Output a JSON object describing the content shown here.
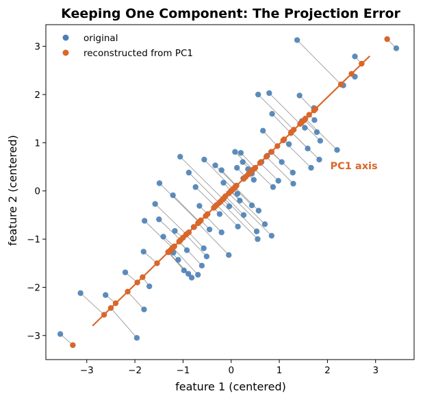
{
  "chart_data": {
    "type": "scatter",
    "title": "Keeping One Component: The Projection Error",
    "xlabel": "feature 1 (centered)",
    "ylabel": "feature 2 (centered)",
    "xlim": [
      -3.85,
      3.8
    ],
    "ylim": [
      -3.5,
      3.45
    ],
    "xticks": [
      -3,
      -2,
      -1,
      0,
      1,
      2,
      3
    ],
    "yticks": [
      -3,
      -2,
      -1,
      0,
      1,
      2,
      3
    ],
    "tick_labels": {
      "x": [
        "−3",
        "−2",
        "−1",
        "0",
        "1",
        "2",
        "3"
      ],
      "y": [
        "−3",
        "−2",
        "−1",
        "0",
        "1",
        "2",
        "3"
      ]
    },
    "grid": false,
    "legend": {
      "position": "top-left",
      "entries": [
        "original",
        "reconstructed from PC1"
      ]
    },
    "colors": {
      "original": "#4a7fb5",
      "reconstructed": "#d9662a",
      "error_line": "#9a9a9a",
      "axis_line": "#d9662a"
    },
    "pc1_axis": {
      "label": "PC1 axis",
      "from": [
        -2.88,
        -2.8
      ],
      "to": [
        2.88,
        2.8
      ],
      "label_at": [
        2.55,
        0.45
      ]
    },
    "series": [
      {
        "name": "original",
        "points": [
          [
            3.43,
            2.96
          ],
          [
            1.37,
            3.13
          ],
          [
            2.57,
            2.79
          ],
          [
            2.57,
            2.37
          ],
          [
            2.33,
            2.19
          ],
          [
            0.56,
            2.0
          ],
          [
            0.79,
            2.03
          ],
          [
            1.42,
            1.98
          ],
          [
            1.72,
            1.72
          ],
          [
            0.85,
            1.6
          ],
          [
            1.47,
            1.45
          ],
          [
            1.73,
            1.47
          ],
          [
            1.53,
            1.31
          ],
          [
            0.66,
            1.25
          ],
          [
            1.78,
            1.22
          ],
          [
            1.85,
            1.04
          ],
          [
            1.2,
            0.97
          ],
          [
            1.59,
            0.88
          ],
          [
            2.2,
            0.85
          ],
          [
            1.83,
            0.65
          ],
          [
            1.66,
            0.48
          ],
          [
            0.08,
            0.81
          ],
          [
            0.2,
            0.79
          ],
          [
            0.75,
            0.73
          ],
          [
            0.63,
            0.6
          ],
          [
            1.05,
            0.6
          ],
          [
            1.28,
            0.38
          ],
          [
            1.29,
            0.15
          ],
          [
            0.98,
            0.21
          ],
          [
            0.87,
            0.08
          ],
          [
            0.24,
            0.6
          ],
          [
            0.12,
            0.48
          ],
          [
            0.35,
            0.45
          ],
          [
            0.43,
            0.36
          ],
          [
            -0.2,
            0.43
          ],
          [
            -1.06,
            0.71
          ],
          [
            -0.56,
            0.65
          ],
          [
            -0.33,
            0.53
          ],
          [
            0.25,
            0.26
          ],
          [
            0.47,
            0.23
          ],
          [
            -0.88,
            0.38
          ],
          [
            -1.49,
            0.16
          ],
          [
            -0.16,
            0.17
          ],
          [
            0.13,
            -0.06
          ],
          [
            -0.74,
            0.08
          ],
          [
            0.18,
            -0.2
          ],
          [
            -0.04,
            -0.32
          ],
          [
            0.43,
            -0.3
          ],
          [
            0.57,
            -0.41
          ],
          [
            -1.21,
            -0.09
          ],
          [
            0.26,
            -0.5
          ],
          [
            -1.58,
            -0.27
          ],
          [
            -0.66,
            -0.31
          ],
          [
            -0.24,
            -0.48
          ],
          [
            -1.5,
            -0.59
          ],
          [
            0.14,
            -0.74
          ],
          [
            0.7,
            -0.69
          ],
          [
            0.84,
            -0.93
          ],
          [
            0.53,
            -0.84
          ],
          [
            -0.2,
            -0.86
          ],
          [
            -0.45,
            -0.8
          ],
          [
            -1.8,
            -0.62
          ],
          [
            -0.78,
            -0.75
          ],
          [
            -1.17,
            -0.83
          ],
          [
            0.55,
            -1.0
          ],
          [
            -1.41,
            -0.95
          ],
          [
            -0.57,
            -1.19
          ],
          [
            -1.82,
            -1.26
          ],
          [
            -1.2,
            -1.28
          ],
          [
            -0.92,
            -1.23
          ],
          [
            -0.51,
            -1.36
          ],
          [
            -0.05,
            -1.33
          ],
          [
            -1.1,
            -1.43
          ],
          [
            -0.61,
            -1.55
          ],
          [
            -0.98,
            -1.65
          ],
          [
            -0.82,
            -1.8
          ],
          [
            -1.7,
            -1.98
          ],
          [
            -0.69,
            -1.74
          ],
          [
            -0.89,
            -1.72
          ],
          [
            -2.2,
            -1.69
          ],
          [
            -2.61,
            -2.16
          ],
          [
            -3.13,
            -2.12
          ],
          [
            -1.81,
            -2.46
          ],
          [
            -1.96,
            -3.05
          ],
          [
            -3.55,
            -2.97
          ]
        ]
      },
      {
        "name": "reconstructed from PC1",
        "points": [
          [
            3.24,
            3.15
          ],
          [
            2.28,
            2.21
          ],
          [
            2.71,
            2.64
          ],
          [
            2.5,
            2.43
          ],
          [
            2.28,
            2.21
          ],
          [
            1.3,
            1.27
          ],
          [
            1.43,
            1.39
          ],
          [
            1.72,
            1.67
          ],
          [
            1.75,
            1.7
          ],
          [
            1.24,
            1.2
          ],
          [
            1.48,
            1.44
          ],
          [
            1.62,
            1.58
          ],
          [
            1.44,
            1.4
          ],
          [
            0.96,
            0.93
          ],
          [
            1.52,
            1.47
          ],
          [
            1.46,
            1.42
          ],
          [
            1.1,
            1.07
          ],
          [
            1.25,
            1.22
          ],
          [
            1.54,
            1.5
          ],
          [
            1.25,
            1.22
          ],
          [
            1.08,
            1.05
          ],
          [
            0.45,
            0.44
          ],
          [
            0.5,
            0.48
          ],
          [
            0.74,
            0.72
          ],
          [
            0.62,
            0.6
          ],
          [
            0.83,
            0.81
          ],
          [
            0.84,
            0.81
          ],
          [
            0.73,
            0.71
          ],
          [
            0.6,
            0.58
          ],
          [
            0.48,
            0.46
          ],
          [
            0.42,
            0.41
          ],
          [
            0.3,
            0.29
          ],
          [
            0.4,
            0.39
          ],
          [
            0.4,
            0.38
          ],
          [
            0.11,
            0.11
          ],
          [
            -0.17,
            -0.17
          ],
          [
            0.04,
            0.04
          ],
          [
            0.1,
            0.1
          ],
          [
            0.26,
            0.25
          ],
          [
            0.35,
            0.34
          ],
          [
            -0.25,
            -0.25
          ],
          [
            -0.67,
            -0.65
          ],
          [
            0.0,
            0.0
          ],
          [
            0.03,
            0.03
          ],
          [
            -0.33,
            -0.32
          ],
          [
            -0.01,
            -0.01
          ],
          [
            -0.18,
            -0.18
          ],
          [
            0.07,
            0.06
          ],
          [
            0.08,
            0.08
          ],
          [
            -0.66,
            -0.64
          ],
          [
            -0.12,
            -0.11
          ],
          [
            -0.93,
            -0.9
          ],
          [
            -0.49,
            -0.48
          ],
          [
            -0.36,
            -0.35
          ],
          [
            -1.05,
            -1.02
          ],
          [
            -0.3,
            -0.29
          ],
          [
            0.0,
            0.0
          ],
          [
            -0.05,
            -0.05
          ],
          [
            -0.15,
            -0.15
          ],
          [
            -0.53,
            -0.52
          ],
          [
            -0.63,
            -0.61
          ],
          [
            -1.22,
            -1.18
          ],
          [
            -0.77,
            -0.75
          ],
          [
            -1.0,
            -0.97
          ],
          [
            -0.22,
            -0.22
          ],
          [
            -1.18,
            -1.15
          ],
          [
            -0.88,
            -0.86
          ],
          [
            -1.54,
            -1.5
          ],
          [
            -1.24,
            -1.21
          ],
          [
            -1.08,
            -1.05
          ],
          [
            -0.94,
            -0.91
          ],
          [
            -0.69,
            -0.67
          ],
          [
            -1.27,
            -1.24
          ],
          [
            -1.08,
            -1.05
          ],
          [
            -1.31,
            -1.27
          ],
          [
            -1.31,
            -1.27
          ],
          [
            -1.84,
            -1.79
          ],
          [
            -1.21,
            -1.18
          ],
          [
            -1.3,
            -1.27
          ],
          [
            -1.95,
            -1.9
          ],
          [
            -2.4,
            -2.33
          ],
          [
            -2.64,
            -2.57
          ],
          [
            -2.15,
            -2.09
          ],
          [
            -2.5,
            -2.43
          ],
          [
            -3.29,
            -3.2
          ]
        ]
      }
    ]
  }
}
